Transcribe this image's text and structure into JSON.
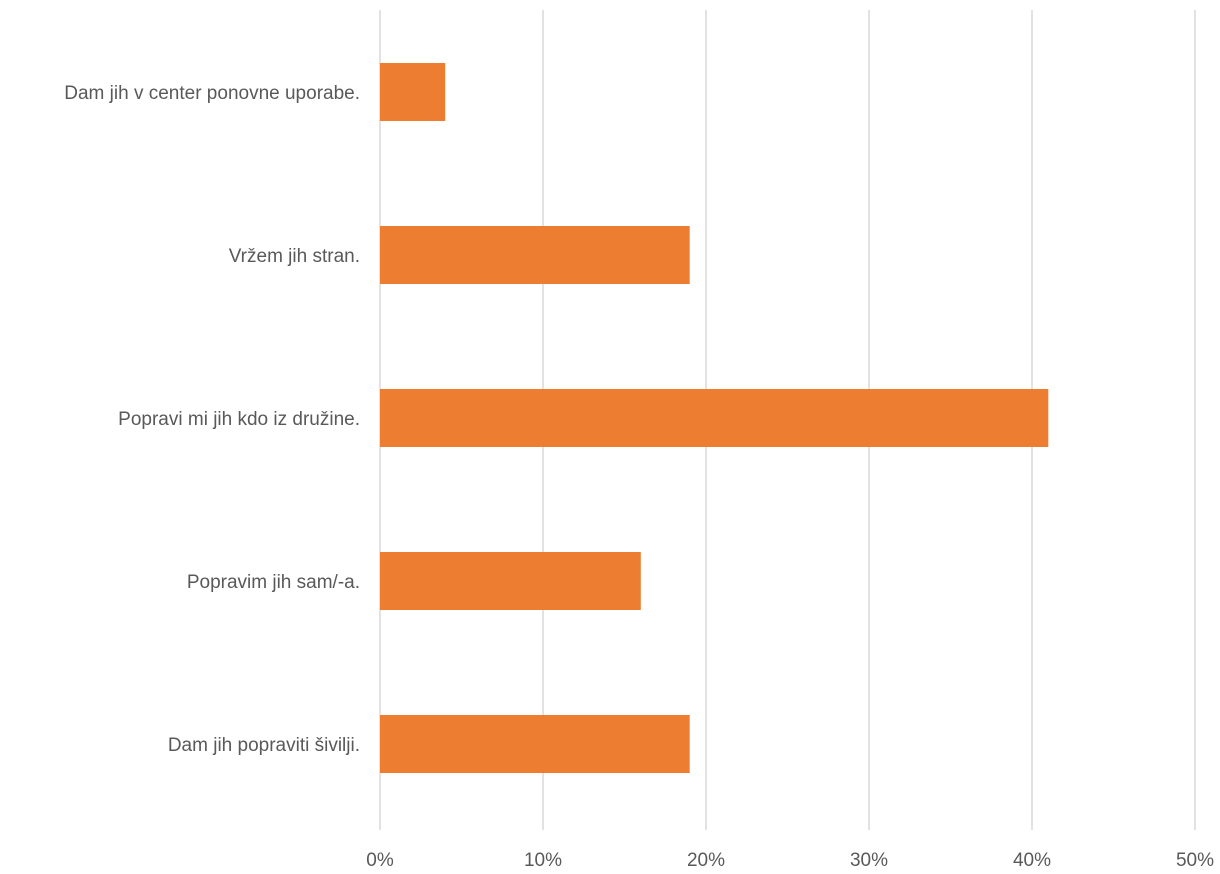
{
  "chart_data": {
    "type": "bar",
    "orientation": "horizontal",
    "categories": [
      "Dam jih v center ponovne uporabe.",
      "Vržem jih stran.",
      "Popravi mi jih kdo iz družine.",
      "Popravim jih sam/-a.",
      "Dam jih popraviti šivilji."
    ],
    "values": [
      4,
      19,
      41,
      16,
      19
    ],
    "value_unit": "%",
    "xlim": [
      0,
      50
    ],
    "x_ticks": [
      0,
      10,
      20,
      30,
      40,
      50
    ],
    "x_tick_labels": [
      "0%",
      "10%",
      "20%",
      "30%",
      "40%",
      "50%"
    ],
    "title": "",
    "xlabel": "",
    "ylabel": "",
    "grid": "vertical",
    "legend": "none",
    "colors": {
      "bar": "#ED7D31",
      "grid": "#D9D9D9",
      "text": "#595959"
    }
  }
}
